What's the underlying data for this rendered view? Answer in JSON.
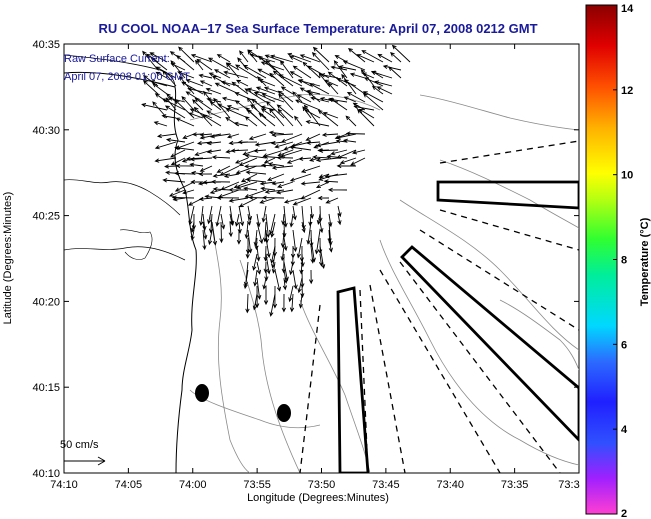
{
  "chart_data": {
    "type": "quiver",
    "title": "RU COOL  NOAA–17  Sea Surface Temperature:  April 07, 2008 0212 GMT",
    "annotation": {
      "line1": "Raw Surface Current:",
      "line2": "April 07, 2008 01:00 GMT"
    },
    "scale_label": "50 cm/s",
    "xlabel": "Longitude (Degrees:Minutes)",
    "ylabel": "Latitude (Degrees:Minutes)",
    "xlim_minutes_west": [
      10,
      30
    ],
    "ylim_minutes_north": [
      10,
      35
    ],
    "xtick_labels": [
      "74:10",
      "74:05",
      "74:00",
      "73:55",
      "73:50",
      "73:45",
      "73:40",
      "73:35",
      "73:3"
    ],
    "ytick_labels": [
      "40:35",
      "40:30",
      "40:25",
      "40:20",
      "40:15",
      "40:10"
    ],
    "colorbar": {
      "label": "Temperature (°C)",
      "min": 2,
      "max": 14,
      "tick_labels": [
        "2",
        "4",
        "6",
        "8",
        "10",
        "12",
        "14"
      ]
    }
  }
}
